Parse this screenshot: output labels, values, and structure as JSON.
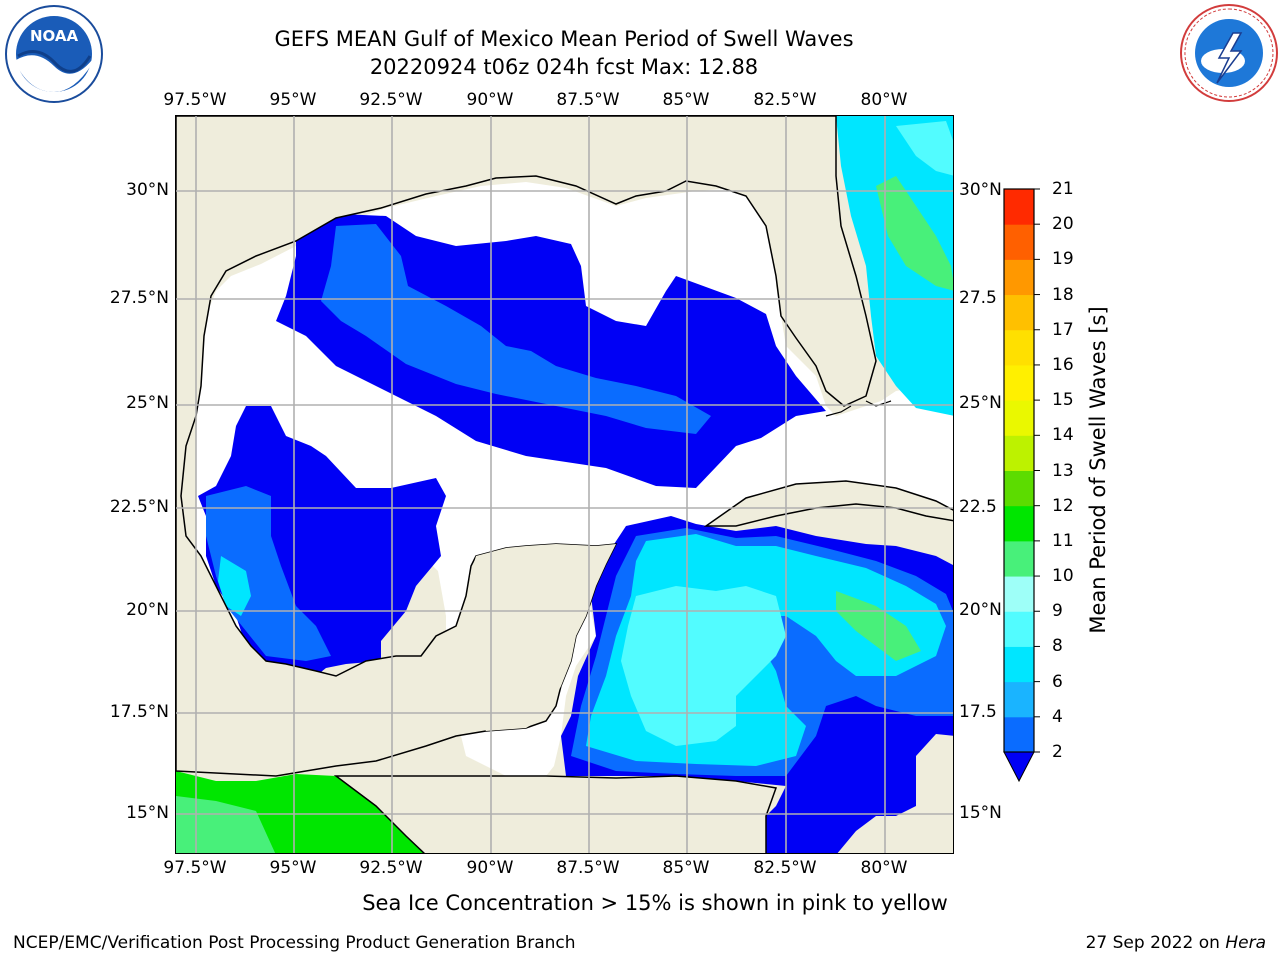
{
  "title_line1": "GEFS MEAN Gulf of Mexico Mean Period of Swell Waves",
  "title_line2": "20220924 t06z 024h fcst   Max: 12.88",
  "lon_labels": [
    "97.5°W",
    "95°W",
    "92.5°W",
    "90°W",
    "87.5°W",
    "85°W",
    "82.5°W",
    "80°W"
  ],
  "lat_labels": [
    "30°N",
    "27.5°N",
    "25°N",
    "22.5°N",
    "20°N",
    "17.5°N",
    "15°N"
  ],
  "lat_labels_inner": [
    "30°N",
    "27.5",
    "25°N",
    "22.5",
    "20°N",
    "17.5",
    "15°N"
  ],
  "colorbar": {
    "label": "Mean Period of Swell Waves [s]",
    "ticks": [
      "2",
      "4",
      "6",
      "8",
      "9",
      "10",
      "11",
      "12",
      "13",
      "14",
      "15",
      "16",
      "17",
      "18",
      "19",
      "20",
      "21"
    ],
    "colors": [
      "#0a6cff",
      "#1ab4ff",
      "#00e6ff",
      "#52fcff",
      "#9efff8",
      "#48f07a",
      "#00e600",
      "#5cdc00",
      "#bdf200",
      "#eaf800",
      "#fff000",
      "#ffe000",
      "#ffc000",
      "#ff9800",
      "#ff6000",
      "#ff2a00"
    ],
    "extend_color": "#0000f5"
  },
  "bottom_note": "Sea Ice Concentration > 15% is shown in pink to yellow",
  "credit": "NCEP/EMC/Verification Post Processing Product Generation Branch",
  "date": "27 Sep 2022 on",
  "host": "Hera",
  "logos": {
    "noaa": {
      "text": "NOAA"
    },
    "nws": {
      "text": "NATIONAL WEATHER SERVICE"
    }
  },
  "map_colors": {
    "land": "#efeddc",
    "nodata": "#ffffff",
    "blue_dark": "#0000f5",
    "blue_mid": "#0a6cff",
    "cyan": "#00e6ff",
    "cyan_light": "#52fcff",
    "green_light": "#48f07a",
    "green": "#00e600"
  }
}
